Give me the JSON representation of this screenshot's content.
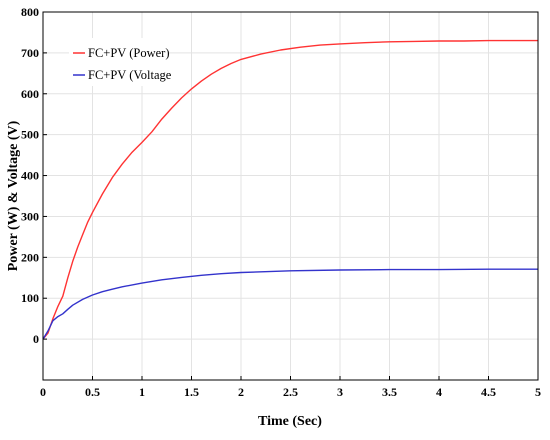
{
  "chart_data": {
    "type": "line",
    "xlabel": "Time (Sec)",
    "ylabel": "Power (W) & Voltage (V)",
    "xlim": [
      0,
      5
    ],
    "ylim": [
      -100,
      800
    ],
    "xticks": [
      "0",
      "0.5",
      "1",
      "1.5",
      "2",
      "2.5",
      "3",
      "3.5",
      "4",
      "4.5",
      "5"
    ],
    "yticks": [
      "0",
      "100",
      "200",
      "300",
      "400",
      "500",
      "600",
      "700",
      "800"
    ],
    "grid": true,
    "legend_position": "top-left",
    "series": [
      {
        "name": "FC+PV (Power)",
        "color": "#ff3333",
        "x": [
          0,
          0.05,
          0.1,
          0.15,
          0.2,
          0.25,
          0.3,
          0.35,
          0.4,
          0.45,
          0.5,
          0.6,
          0.7,
          0.8,
          0.9,
          1.0,
          1.1,
          1.2,
          1.3,
          1.4,
          1.5,
          1.6,
          1.7,
          1.8,
          1.9,
          2.0,
          2.2,
          2.4,
          2.6,
          2.8,
          3.0,
          3.25,
          3.5,
          3.75,
          4.0,
          4.25,
          4.5,
          4.75,
          5.0
        ],
        "values": [
          0,
          15,
          50,
          80,
          105,
          150,
          190,
          225,
          255,
          285,
          310,
          355,
          395,
          428,
          457,
          481,
          507,
          538,
          565,
          590,
          612,
          631,
          648,
          662,
          674,
          684,
          697,
          707,
          714,
          719,
          722,
          725,
          727,
          728,
          729,
          729,
          730,
          730,
          730
        ]
      },
      {
        "name": "FC+PV (Voltage",
        "color": "#3333cc",
        "x": [
          0,
          0.05,
          0.1,
          0.15,
          0.2,
          0.25,
          0.3,
          0.4,
          0.5,
          0.6,
          0.7,
          0.8,
          1.0,
          1.2,
          1.4,
          1.6,
          1.8,
          2.0,
          2.5,
          3.0,
          3.5,
          4.0,
          4.5,
          5.0
        ],
        "values": [
          0,
          20,
          45,
          55,
          62,
          73,
          83,
          97,
          108,
          116,
          122,
          128,
          137,
          145,
          151,
          156,
          160,
          163,
          167,
          169,
          170,
          170,
          171,
          171
        ]
      }
    ]
  }
}
